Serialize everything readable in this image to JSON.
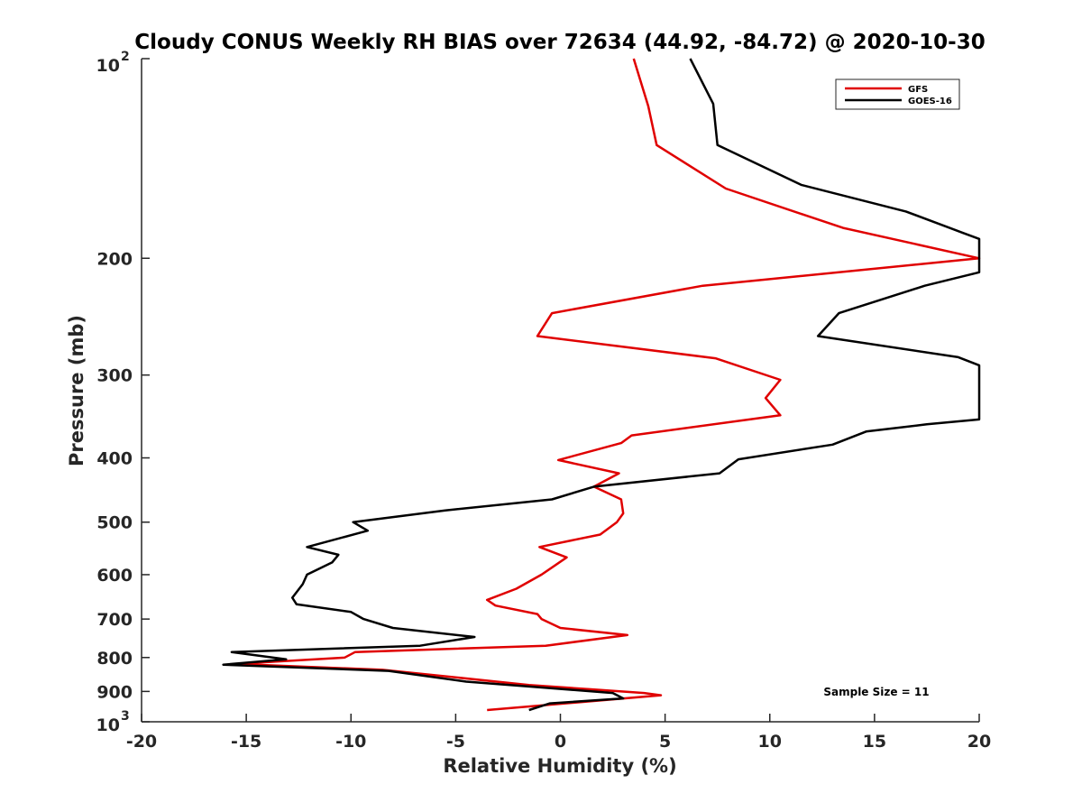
{
  "chart_data": {
    "type": "line",
    "title": "Cloudy CONUS Weekly RH BIAS over 72634 (44.92, -84.72) @ 2020-10-30",
    "xlabel": "Relative Humidity (%)",
    "ylabel": "Pressure (mb)",
    "xlim": [
      -20,
      20
    ],
    "ylim": [
      100,
      1000
    ],
    "y_scale": "log",
    "y_reversed": true,
    "xticks": [
      -20,
      -15,
      -10,
      -5,
      0,
      5,
      10,
      15,
      20
    ],
    "xtick_labels": [
      "-20",
      "-15",
      "-10",
      "-5",
      "0",
      "5",
      "10",
      "15",
      "20"
    ],
    "yticks": [
      200,
      300,
      400,
      500,
      600,
      700,
      800,
      900
    ],
    "ytick_labels": [
      "200",
      "300",
      "400",
      "500",
      "600",
      "700",
      "800",
      "900"
    ],
    "ytick_top": {
      "value": 100,
      "base": "10",
      "exp": "2"
    },
    "ytick_bottom": {
      "value": 1000,
      "base": "10",
      "exp": "3"
    },
    "grid": false,
    "legend_position": "top-right",
    "annotation": "Sample Size = 11",
    "series": [
      {
        "name": "GFS",
        "color": "#e00000",
        "points": [
          {
            "x": 3.5,
            "y": 100
          },
          {
            "x": 4.2,
            "y": 118
          },
          {
            "x": 4.6,
            "y": 135
          },
          {
            "x": 7.9,
            "y": 157
          },
          {
            "x": 13.5,
            "y": 180
          },
          {
            "x": 20.0,
            "y": 200
          },
          {
            "x": 6.8,
            "y": 220
          },
          {
            "x": -0.4,
            "y": 242
          },
          {
            "x": -1.1,
            "y": 262
          },
          {
            "x": 7.4,
            "y": 283
          },
          {
            "x": 10.5,
            "y": 305
          },
          {
            "x": 9.8,
            "y": 325
          },
          {
            "x": 10.5,
            "y": 345
          },
          {
            "x": 3.4,
            "y": 370
          },
          {
            "x": 2.9,
            "y": 380
          },
          {
            "x": -0.1,
            "y": 403
          },
          {
            "x": 2.8,
            "y": 422
          },
          {
            "x": 1.6,
            "y": 442
          },
          {
            "x": 2.9,
            "y": 462
          },
          {
            "x": 3.0,
            "y": 485
          },
          {
            "x": 2.7,
            "y": 500
          },
          {
            "x": 1.9,
            "y": 522
          },
          {
            "x": -1.0,
            "y": 545
          },
          {
            "x": 0.3,
            "y": 565
          },
          {
            "x": -0.9,
            "y": 600
          },
          {
            "x": -2.1,
            "y": 630
          },
          {
            "x": -3.5,
            "y": 655
          },
          {
            "x": -3.1,
            "y": 668
          },
          {
            "x": -1.1,
            "y": 688
          },
          {
            "x": -0.9,
            "y": 700
          },
          {
            "x": 0.0,
            "y": 722
          },
          {
            "x": 3.2,
            "y": 740
          },
          {
            "x": -0.7,
            "y": 768
          },
          {
            "x": -9.8,
            "y": 785
          },
          {
            "x": -10.3,
            "y": 800
          },
          {
            "x": -15.5,
            "y": 818
          },
          {
            "x": -8.5,
            "y": 835
          },
          {
            "x": -1.5,
            "y": 880
          },
          {
            "x": 4.0,
            "y": 905
          },
          {
            "x": 4.8,
            "y": 912
          },
          {
            "x": -3.5,
            "y": 960
          }
        ]
      },
      {
        "name": "GOES-16",
        "color": "#000000",
        "points": [
          {
            "x": 6.2,
            "y": 100
          },
          {
            "x": 7.3,
            "y": 117
          },
          {
            "x": 7.5,
            "y": 135
          },
          {
            "x": 11.5,
            "y": 155
          },
          {
            "x": 16.5,
            "y": 170
          },
          {
            "x": 19.2,
            "y": 183
          },
          {
            "x": 20.0,
            "y": 187
          },
          {
            "x": 20.0,
            "y": 210
          },
          {
            "x": 17.4,
            "y": 220
          },
          {
            "x": 13.3,
            "y": 242
          },
          {
            "x": 12.3,
            "y": 262
          },
          {
            "x": 19.0,
            "y": 282
          },
          {
            "x": 20.0,
            "y": 290
          },
          {
            "x": 20.0,
            "y": 350
          },
          {
            "x": 17.5,
            "y": 356
          },
          {
            "x": 14.6,
            "y": 365
          },
          {
            "x": 13.0,
            "y": 382
          },
          {
            "x": 8.5,
            "y": 402
          },
          {
            "x": 7.6,
            "y": 422
          },
          {
            "x": 1.6,
            "y": 442
          },
          {
            "x": -0.4,
            "y": 462
          },
          {
            "x": -5.5,
            "y": 480
          },
          {
            "x": -9.9,
            "y": 500
          },
          {
            "x": -9.2,
            "y": 515
          },
          {
            "x": -12.1,
            "y": 545
          },
          {
            "x": -10.6,
            "y": 560
          },
          {
            "x": -10.9,
            "y": 575
          },
          {
            "x": -12.1,
            "y": 600
          },
          {
            "x": -12.3,
            "y": 620
          },
          {
            "x": -12.8,
            "y": 650
          },
          {
            "x": -12.6,
            "y": 665
          },
          {
            "x": -10.0,
            "y": 683
          },
          {
            "x": -9.4,
            "y": 700
          },
          {
            "x": -8.0,
            "y": 722
          },
          {
            "x": -4.1,
            "y": 745
          },
          {
            "x": -6.7,
            "y": 768
          },
          {
            "x": -15.7,
            "y": 785
          },
          {
            "x": -13.1,
            "y": 805
          },
          {
            "x": -16.1,
            "y": 820
          },
          {
            "x": -8.2,
            "y": 838
          },
          {
            "x": -4.5,
            "y": 870
          },
          {
            "x": 2.5,
            "y": 905
          },
          {
            "x": 3.0,
            "y": 922
          },
          {
            "x": -0.5,
            "y": 938
          },
          {
            "x": -1.5,
            "y": 960
          }
        ]
      }
    ]
  }
}
